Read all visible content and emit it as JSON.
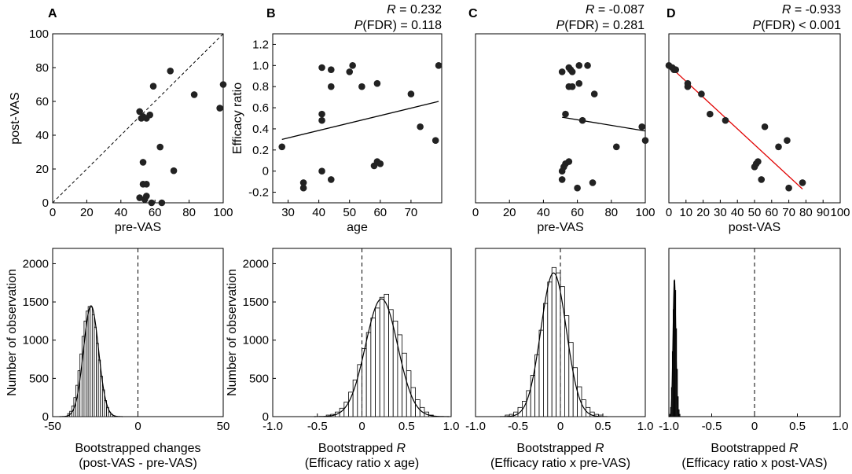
{
  "panel_labels": [
    "A",
    "B",
    "C",
    "D"
  ],
  "stats": [
    {
      "panel": "B",
      "r_prefix": "R",
      "r_text": " = 0.232",
      "p_prefix": "P",
      "p_text": "(FDR) = 0.118"
    },
    {
      "panel": "C",
      "r_prefix": "R",
      "r_text": " = -0.087",
      "p_prefix": "P",
      "p_text": "(FDR) = 0.281"
    },
    {
      "panel": "D",
      "r_prefix": "R",
      "r_text": " = -0.933",
      "p_prefix": "P",
      "p_text": "(FDR) < 0.001"
    }
  ],
  "colors": {
    "points": "#222222",
    "fit_line": "#000000",
    "fit_line_d": "#e00000",
    "bars_fill": "#ffffff",
    "bars_fill_d": "#555555"
  },
  "chart_data": [
    {
      "id": "A-scatter",
      "type": "scatter",
      "xlabel": "pre-VAS",
      "ylabel": "post-VAS",
      "xlim": [
        0,
        100
      ],
      "ylim": [
        0,
        100
      ],
      "xticks": [
        "0",
        "20",
        "40",
        "60",
        "80",
        "100"
      ],
      "yticks": [
        "0",
        "20",
        "40",
        "60",
        "80",
        "100"
      ],
      "reference_line": "identity",
      "points": [
        [
          51,
          54
        ],
        [
          52,
          50
        ],
        [
          53,
          51
        ],
        [
          55,
          50
        ],
        [
          57,
          52
        ],
        [
          59,
          69
        ],
        [
          69,
          78
        ],
        [
          83,
          64
        ],
        [
          98,
          56
        ],
        [
          100,
          70
        ],
        [
          53,
          24
        ],
        [
          63,
          33
        ],
        [
          71,
          19
        ],
        [
          53,
          11
        ],
        [
          55,
          11
        ],
        [
          51,
          3
        ],
        [
          54,
          2
        ],
        [
          55,
          4
        ],
        [
          58,
          0
        ],
        [
          64,
          0
        ]
      ]
    },
    {
      "id": "B-scatter",
      "type": "scatter",
      "xlabel": "age",
      "ylabel": "Efficacy ratio",
      "xlim": [
        25,
        80
      ],
      "ylim": [
        -0.3,
        1.3
      ],
      "xticks": [
        "30",
        "40",
        "50",
        "60",
        "70"
      ],
      "yticks": [
        "-0.2",
        "0",
        "0.2",
        "0.4",
        "0.6",
        "0.8",
        "1.0",
        "1.2"
      ],
      "fit": [
        [
          28,
          0.3
        ],
        [
          79,
          0.66
        ]
      ],
      "points": [
        [
          28,
          0.23
        ],
        [
          35,
          -0.11
        ],
        [
          35,
          -0.16
        ],
        [
          41,
          0.98
        ],
        [
          41,
          0.54
        ],
        [
          41,
          0.48
        ],
        [
          41,
          0.0
        ],
        [
          44,
          0.96
        ],
        [
          44,
          0.8
        ],
        [
          44,
          -0.08
        ],
        [
          50,
          0.94
        ],
        [
          51,
          1.0
        ],
        [
          54,
          0.8
        ],
        [
          58,
          0.05
        ],
        [
          59,
          0.09
        ],
        [
          59,
          0.83
        ],
        [
          60,
          0.07
        ],
        [
          70,
          0.73
        ],
        [
          73,
          0.42
        ],
        [
          78,
          0.29
        ],
        [
          79,
          1.0
        ]
      ]
    },
    {
      "id": "C-scatter",
      "type": "scatter",
      "xlabel": "pre-VAS",
      "ylabel": "",
      "xlim": [
        0,
        100
      ],
      "ylim": [
        -0.3,
        1.3
      ],
      "xticks": [
        "0",
        "20",
        "40",
        "60",
        "80",
        "100"
      ],
      "yticks": [],
      "fit": [
        [
          51,
          0.51
        ],
        [
          100,
          0.38
        ]
      ],
      "points": [
        [
          51,
          0.94
        ],
        [
          53,
          0.54
        ],
        [
          55,
          0.98
        ],
        [
          56,
          0.96
        ],
        [
          57,
          0.94
        ],
        [
          55,
          0.8
        ],
        [
          57,
          0.8
        ],
        [
          61,
          0.83
        ],
        [
          61,
          1.0
        ],
        [
          66,
          1.0
        ],
        [
          70,
          0.73
        ],
        [
          63,
          0.48
        ],
        [
          52,
          0.04
        ],
        [
          51,
          -0.08
        ],
        [
          51,
          0.0
        ],
        [
          53,
          0.07
        ],
        [
          55,
          0.09
        ],
        [
          60,
          -0.16
        ],
        [
          69,
          -0.11
        ],
        [
          83,
          0.23
        ],
        [
          98,
          0.42
        ],
        [
          100,
          0.29
        ]
      ]
    },
    {
      "id": "D-scatter",
      "type": "scatter",
      "xlabel": "post-VAS",
      "ylabel": "",
      "xlim": [
        0,
        100
      ],
      "ylim": [
        -0.3,
        1.3
      ],
      "xticks": [
        "0",
        "10",
        "20",
        "30",
        "40",
        "50",
        "60",
        "70",
        "80",
        "90",
        "100"
      ],
      "yticks": [],
      "fit": [
        [
          0,
          1.0
        ],
        [
          78,
          -0.17
        ]
      ],
      "points": [
        [
          0,
          1.0
        ],
        [
          2,
          0.98
        ],
        [
          3,
          0.96
        ],
        [
          4,
          0.96
        ],
        [
          11,
          0.83
        ],
        [
          11,
          0.8
        ],
        [
          19,
          0.73
        ],
        [
          24,
          0.54
        ],
        [
          33,
          0.48
        ],
        [
          50,
          0.04
        ],
        [
          51,
          0.07
        ],
        [
          52,
          0.09
        ],
        [
          54,
          -0.08
        ],
        [
          56,
          0.42
        ],
        [
          64,
          0.23
        ],
        [
          69,
          0.29
        ],
        [
          70,
          -0.16
        ],
        [
          78,
          -0.11
        ]
      ]
    },
    {
      "id": "A-hist",
      "type": "bar",
      "xlabel": [
        "Bootstrapped changes",
        "(post-VAS - pre-VAS)"
      ],
      "ylabel": "Number of observation",
      "xlim": [
        -50,
        50
      ],
      "ylim": [
        0,
        2200
      ],
      "xticks": [
        "-50",
        "0",
        "50"
      ],
      "yticks": [
        "0",
        "500",
        "1000",
        "1500",
        "2000"
      ],
      "zero_line": 0,
      "gauss": {
        "mean": -27.5,
        "sd": 4.4,
        "peak": 1450
      },
      "bin_width": 1.2,
      "bin_centers": [
        -40.6,
        -39.4,
        -38.2,
        -37,
        -35.8,
        -34.6,
        -33.4,
        -32.2,
        -31,
        -29.8,
        -28.6,
        -27.4,
        -26.2,
        -25,
        -23.8,
        -22.6,
        -21.4,
        -20.2,
        -19,
        -17.8,
        -16.6,
        -15.4
      ],
      "values": [
        40,
        70,
        140,
        250,
        410,
        600,
        820,
        1050,
        1250,
        1380,
        1440,
        1430,
        1330,
        1170,
        960,
        740,
        530,
        350,
        210,
        120,
        60,
        30
      ]
    },
    {
      "id": "B-hist",
      "type": "bar",
      "xlabel_main": "Bootstrapped ",
      "xlabel_italic": "R",
      "xlabel_sub": "(Efficacy ratio x age)",
      "ylabel": "Number of observation",
      "xlim": [
        -1.0,
        1.0
      ],
      "ylim": [
        0,
        2200
      ],
      "xticks": [
        "-1.0",
        "-0.5",
        "0",
        "0.5",
        "1.0"
      ],
      "yticks": [
        "0",
        "500",
        "1000",
        "1500",
        "2000"
      ],
      "zero_line": 0,
      "gauss": {
        "mean": 0.22,
        "sd": 0.18,
        "peak": 1540
      },
      "bin_width": 0.05,
      "bin_centers": [
        -0.375,
        -0.325,
        -0.275,
        -0.225,
        -0.175,
        -0.125,
        -0.075,
        -0.025,
        0.025,
        0.075,
        0.125,
        0.175,
        0.225,
        0.275,
        0.325,
        0.375,
        0.425,
        0.475,
        0.525,
        0.575,
        0.625,
        0.675,
        0.725,
        0.775
      ],
      "values": [
        20,
        30,
        60,
        110,
        190,
        320,
        480,
        680,
        890,
        1100,
        1290,
        1420,
        1560,
        1600,
        1400,
        1250,
        1070,
        830,
        600,
        380,
        220,
        120,
        60,
        20
      ]
    },
    {
      "id": "C-hist",
      "type": "bar",
      "xlabel_main": "Bootstrapped ",
      "xlabel_italic": "R",
      "xlabel_sub": "(Efficacy ratio x pre-VAS)",
      "ylabel": "",
      "xlim": [
        -1.0,
        1.0
      ],
      "ylim": [
        0,
        2200
      ],
      "xticks": [
        "-1.0",
        "-0.5",
        "0",
        "0.5",
        "1.0"
      ],
      "yticks": [],
      "zero_line": 0,
      "gauss": {
        "mean": -0.08,
        "sd": 0.15,
        "peak": 1880
      },
      "bin_width": 0.05,
      "bin_centers": [
        -0.625,
        -0.575,
        -0.525,
        -0.475,
        -0.425,
        -0.375,
        -0.325,
        -0.275,
        -0.225,
        -0.175,
        -0.125,
        -0.075,
        -0.025,
        0.025,
        0.075,
        0.125,
        0.175,
        0.225,
        0.275,
        0.325,
        0.375,
        0.425,
        0.475
      ],
      "values": [
        20,
        30,
        60,
        120,
        200,
        340,
        540,
        810,
        1130,
        1480,
        1760,
        1950,
        1880,
        1700,
        1320,
        970,
        640,
        390,
        220,
        120,
        60,
        30,
        20
      ]
    },
    {
      "id": "D-hist",
      "type": "bar",
      "xlabel_main": "Bootstrapped ",
      "xlabel_italic": "R",
      "xlabel_sub": "(Efficacy ratio x post-VAS)",
      "ylabel": "",
      "xlim": [
        -1.0,
        1.0
      ],
      "ylim": [
        0,
        2200
      ],
      "xticks": [
        "-1.0",
        "-0.5",
        "0",
        "0.5",
        "1.0"
      ],
      "yticks": [],
      "zero_line": 0,
      "gauss": {
        "mean": -0.935,
        "sd": 0.016,
        "peak": 1780
      },
      "bin_width": 0.01,
      "bin_centers": [
        -0.985,
        -0.975,
        -0.965,
        -0.955,
        -0.945,
        -0.935,
        -0.925,
        -0.915,
        -0.905,
        -0.895,
        -0.885,
        -0.875
      ],
      "values": [
        30,
        120,
        380,
        850,
        1400,
        1780,
        1650,
        1150,
        620,
        260,
        90,
        30
      ]
    }
  ]
}
